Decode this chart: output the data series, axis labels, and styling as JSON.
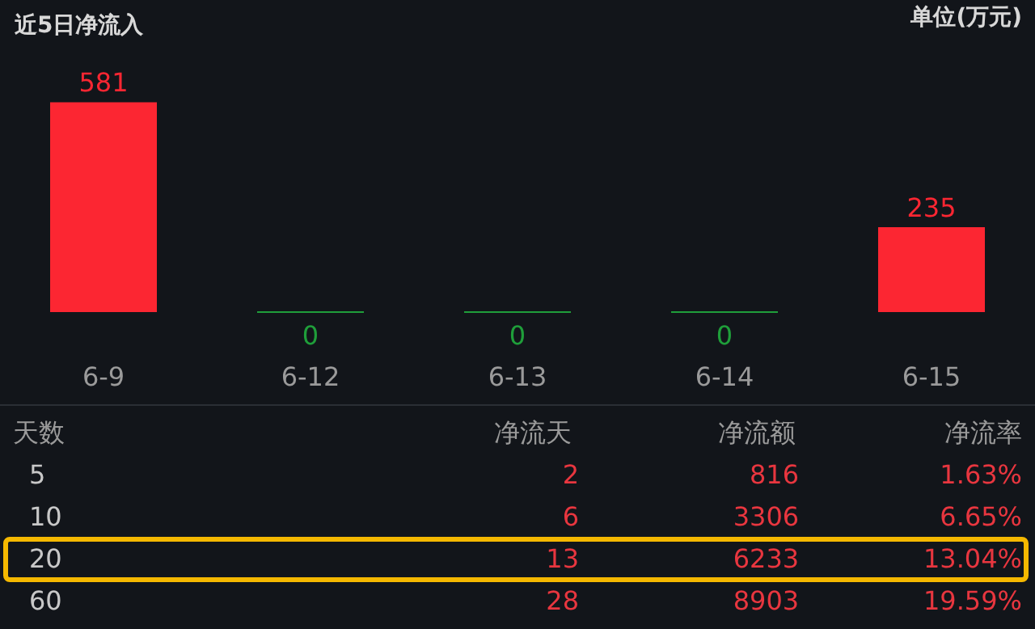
{
  "chart_data": [
    {
      "type": "bar",
      "title": "近5日净流入",
      "annotations": [
        "单位(万元)"
      ],
      "categories": [
        "6-9",
        "6-12",
        "6-13",
        "6-14",
        "6-15"
      ],
      "values": [
        581,
        0,
        0,
        0,
        235
      ],
      "colors": [
        "#fc2632",
        "#1f9e3a",
        "#1f9e3a",
        "#1f9e3a",
        "#fc2632"
      ],
      "data_labels": true
    },
    {
      "type": "other",
      "xlabel": "天数",
      "categories": [
        "5",
        "10",
        "20",
        "60"
      ],
      "data_labels": true,
      "series": [
        {
          "name": "净流天",
          "values": [
            2,
            6,
            13,
            28
          ]
        },
        {
          "name": "净流额",
          "values": [
            816,
            3306,
            6233,
            8903
          ]
        },
        {
          "name": "净流率",
          "values": [
            1.63,
            6.65,
            13.04,
            19.59
          ],
          "value_labels": [
            "1.63%",
            "6.65%",
            "13.04%",
            "19.59%"
          ]
        }
      ]
    }
  ]
}
